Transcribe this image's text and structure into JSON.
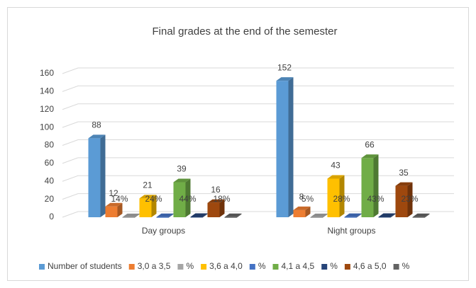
{
  "chart_data": {
    "type": "bar3d",
    "title": "Final grades at the end of the semester",
    "categories": [
      "Day groups",
      "Night groups"
    ],
    "series": [
      {
        "name": "Number of students",
        "color": "#5b9bd5",
        "values": [
          88,
          152
        ]
      },
      {
        "name": "3,0 a 3,5",
        "color": "#ed7d31",
        "values": [
          12,
          8
        ]
      },
      {
        "name": "%",
        "color": "#a5a5a5",
        "values": [
          0.14,
          0.05
        ],
        "value_labels": [
          "14%",
          "5%"
        ]
      },
      {
        "name": "3,6 a 4,0",
        "color": "#ffc000",
        "values": [
          21,
          43
        ]
      },
      {
        "name": "%",
        "color": "#4472c4",
        "values": [
          0.24,
          0.28
        ],
        "value_labels": [
          "24%",
          "28%"
        ]
      },
      {
        "name": "4,1 a 4,5",
        "color": "#70ad47",
        "values": [
          39,
          66
        ]
      },
      {
        "name": "%",
        "color": "#264478",
        "values": [
          0.44,
          0.43
        ],
        "value_labels": [
          "44%",
          "43%"
        ]
      },
      {
        "name": "4,6 a 5,0",
        "color": "#9e480e",
        "values": [
          16,
          35
        ]
      },
      {
        "name": "%",
        "color": "#636363",
        "values": [
          0.18,
          0.23
        ],
        "value_labels": [
          "18%",
          "23%"
        ]
      }
    ],
    "ylim": [
      0,
      160
    ],
    "yticks": [
      0,
      20,
      40,
      60,
      80,
      100,
      120,
      140,
      160
    ],
    "grid": true,
    "legend": "bottom"
  }
}
